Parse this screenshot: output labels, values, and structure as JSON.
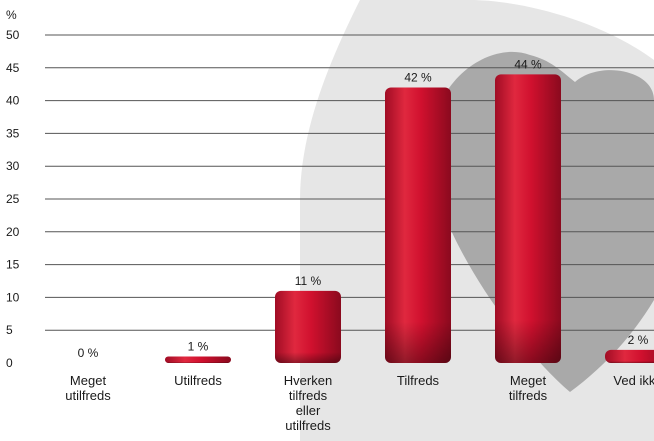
{
  "chart_data": {
    "type": "bar",
    "y_unit": "%",
    "ylim": [
      0,
      50
    ],
    "y_ticks": [
      0,
      5,
      10,
      15,
      20,
      25,
      30,
      35,
      40,
      45,
      50
    ],
    "grid": true,
    "categories": [
      [
        "Meget",
        "utilfreds"
      ],
      [
        "Utilfreds"
      ],
      [
        "Hverken",
        "tilfreds",
        "eller",
        "utilfreds"
      ],
      [
        "Tilfreds"
      ],
      [
        "Meget",
        "tilfreds"
      ],
      [
        "Ved ikke"
      ]
    ],
    "values": [
      0,
      1,
      11,
      42,
      44,
      2
    ],
    "data_labels": [
      "0 %",
      "1 %",
      "11 %",
      "42 %",
      "44 %",
      "2 %"
    ],
    "colors": {
      "bar": "#d0102e",
      "bar_highlight": "#ec5a6e",
      "bar_shadow": "#8a0a1e",
      "grid": "#555555",
      "heart_background": "#e6e6e6",
      "heart_foreground": "#a9a9a9"
    }
  }
}
